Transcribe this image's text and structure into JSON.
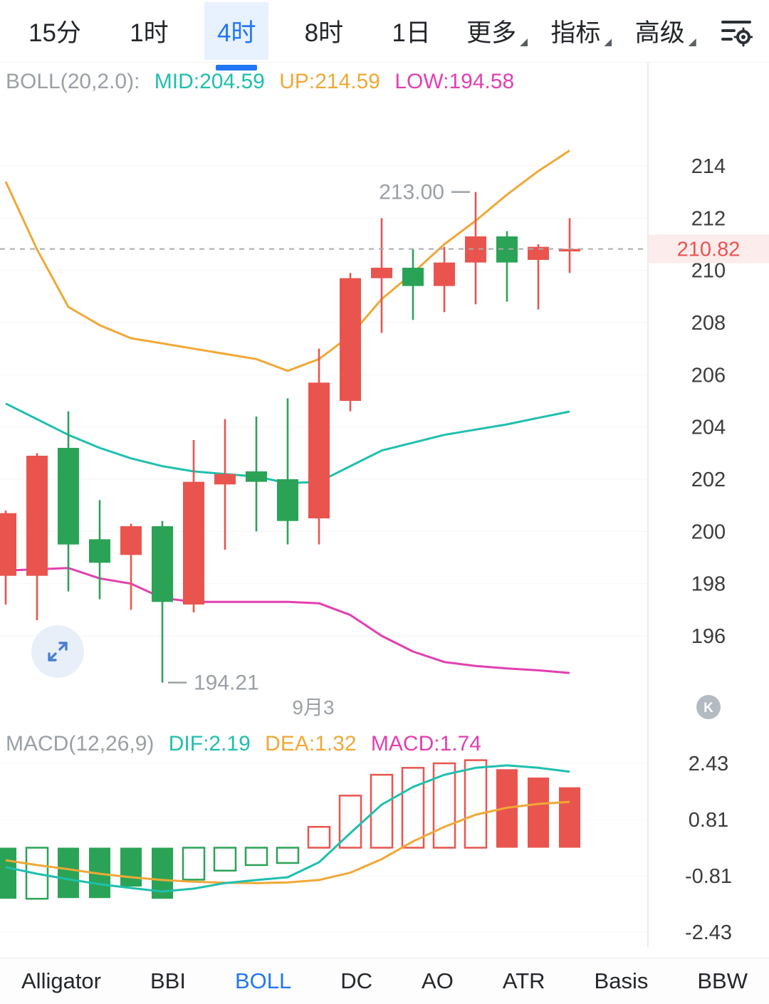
{
  "topbar": {
    "tabs": [
      {
        "label": "15分",
        "active": false
      },
      {
        "label": "1时",
        "active": false
      },
      {
        "label": "4时",
        "active": true
      },
      {
        "label": "8时",
        "active": false
      },
      {
        "label": "1日",
        "active": false
      }
    ],
    "menus": [
      {
        "label": "更多"
      },
      {
        "label": "指标"
      },
      {
        "label": "高级"
      }
    ]
  },
  "boll_header": {
    "prefix": "BOLL(20,2.0):",
    "mid": "MID:204.59",
    "up": "UP:214.59",
    "low": "LOW:194.58"
  },
  "macd_header": {
    "prefix": "MACD(12,26,9)",
    "dif": "DIF:2.19",
    "dea": "DEA:1.32",
    "macd": "MACD:1.74"
  },
  "annotations": {
    "high": "213.00",
    "low": "194.21",
    "date": "9月3",
    "k_badge": "K",
    "current_price": "210.82"
  },
  "bottombar": {
    "items": [
      {
        "label": "Alligator",
        "active": false
      },
      {
        "label": "BBI",
        "active": false
      },
      {
        "label": "BOLL",
        "active": true
      },
      {
        "label": "DC",
        "active": false
      },
      {
        "label": "AO",
        "active": false
      },
      {
        "label": "ATR",
        "active": false
      },
      {
        "label": "Basis",
        "active": false
      },
      {
        "label": "BBW",
        "active": false
      }
    ]
  },
  "colors": {
    "up_red": "#e9544e",
    "down_green": "#2ba356",
    "teal": "#1fbfae",
    "orange": "#f0a836",
    "magenta": "#e23fb1",
    "accent_blue": "#2276f5",
    "axis_text": "#3c3c3c",
    "gray_text": "#9aa0a6",
    "current_badge_bg": "#fdecec"
  },
  "chart_data": [
    {
      "type": "candlestick",
      "title": "BOLL(20,2.0)",
      "y_ticks": [
        214,
        212,
        210,
        208,
        206,
        204,
        202,
        200,
        198,
        196
      ],
      "current_price": 210.82,
      "high_label": 213.0,
      "high_label_index": 15,
      "low_label": 194.21,
      "low_label_index": 5,
      "x_date_label": "9月3",
      "candles": [
        {
          "o": 198.3,
          "h": 200.8,
          "l": 197.2,
          "c": 200.7
        },
        {
          "o": 198.3,
          "h": 203.0,
          "l": 196.6,
          "c": 202.9
        },
        {
          "o": 203.2,
          "h": 204.6,
          "l": 197.7,
          "c": 199.5
        },
        {
          "o": 199.7,
          "h": 201.2,
          "l": 197.4,
          "c": 198.8
        },
        {
          "o": 199.1,
          "h": 200.3,
          "l": 197.0,
          "c": 200.2
        },
        {
          "o": 200.2,
          "h": 200.4,
          "l": 194.21,
          "c": 197.3
        },
        {
          "o": 197.2,
          "h": 203.5,
          "l": 196.9,
          "c": 201.9
        },
        {
          "o": 201.8,
          "h": 204.3,
          "l": 199.3,
          "c": 202.2
        },
        {
          "o": 202.3,
          "h": 204.4,
          "l": 200.0,
          "c": 201.9
        },
        {
          "o": 202.0,
          "h": 205.1,
          "l": 199.5,
          "c": 200.4
        },
        {
          "o": 200.5,
          "h": 207.0,
          "l": 199.5,
          "c": 205.7
        },
        {
          "o": 205.0,
          "h": 209.9,
          "l": 204.6,
          "c": 209.7
        },
        {
          "o": 209.7,
          "h": 212.0,
          "l": 207.6,
          "c": 210.1
        },
        {
          "o": 210.1,
          "h": 210.8,
          "l": 208.1,
          "c": 209.4
        },
        {
          "o": 209.4,
          "h": 210.9,
          "l": 208.4,
          "c": 210.3
        },
        {
          "o": 210.3,
          "h": 213.0,
          "l": 208.7,
          "c": 211.3
        },
        {
          "o": 211.3,
          "h": 211.5,
          "l": 208.8,
          "c": 210.3
        },
        {
          "o": 210.4,
          "h": 211.0,
          "l": 208.5,
          "c": 210.9
        },
        {
          "o": 210.75,
          "h": 212.0,
          "l": 209.9,
          "c": 210.82
        }
      ],
      "boll": {
        "mid_value": 204.59,
        "up_value": 214.59,
        "low_value": 194.58,
        "up": [
          213.4,
          210.8,
          208.6,
          207.9,
          207.4,
          207.2,
          207.0,
          206.8,
          206.6,
          206.15,
          206.6,
          207.5,
          208.9,
          209.9,
          211.0,
          211.9,
          212.9,
          213.8,
          214.59
        ],
        "mid": [
          204.9,
          204.3,
          203.7,
          203.2,
          202.8,
          202.5,
          202.3,
          202.2,
          202.1,
          201.85,
          201.9,
          202.5,
          203.1,
          203.4,
          203.7,
          203.9,
          204.1,
          204.35,
          204.59
        ],
        "low": [
          198.5,
          198.55,
          198.6,
          198.2,
          198.0,
          197.45,
          197.3,
          197.3,
          197.3,
          197.3,
          197.25,
          196.8,
          196.0,
          195.4,
          195.0,
          194.85,
          194.75,
          194.68,
          194.58
        ]
      }
    },
    {
      "type": "bar",
      "title": "MACD(12,26,9)",
      "y_ticks": [
        2.43,
        0.81,
        -0.81,
        -2.43
      ],
      "dif_value": 2.19,
      "dea_value": 1.32,
      "macd_value": 1.74,
      "histogram": [
        {
          "v": -1.47,
          "hollow": false
        },
        {
          "v": -1.47,
          "hollow": true
        },
        {
          "v": -1.45,
          "hollow": false
        },
        {
          "v": -1.45,
          "hollow": false
        },
        {
          "v": -1.12,
          "hollow": false
        },
        {
          "v": -1.47,
          "hollow": false
        },
        {
          "v": -0.92,
          "hollow": true
        },
        {
          "v": -0.66,
          "hollow": true
        },
        {
          "v": -0.5,
          "hollow": true
        },
        {
          "v": -0.44,
          "hollow": true
        },
        {
          "v": 0.6,
          "hollow": true
        },
        {
          "v": 1.5,
          "hollow": true
        },
        {
          "v": 2.1,
          "hollow": true
        },
        {
          "v": 2.3,
          "hollow": true
        },
        {
          "v": 2.43,
          "hollow": true
        },
        {
          "v": 2.52,
          "hollow": true
        },
        {
          "v": 2.26,
          "hollow": false
        },
        {
          "v": 2.02,
          "hollow": false
        },
        {
          "v": 1.74,
          "hollow": false
        }
      ],
      "dif": [
        -0.56,
        -0.75,
        -0.91,
        -1.05,
        -1.16,
        -1.26,
        -1.18,
        -1.02,
        -0.93,
        -0.85,
        -0.42,
        0.42,
        1.24,
        1.75,
        2.1,
        2.3,
        2.37,
        2.3,
        2.19
      ],
      "dea": [
        -0.36,
        -0.5,
        -0.62,
        -0.75,
        -0.85,
        -0.93,
        -0.98,
        -1.01,
        -1.02,
        -1.0,
        -0.93,
        -0.72,
        -0.33,
        0.18,
        0.6,
        0.95,
        1.15,
        1.26,
        1.32
      ]
    }
  ]
}
